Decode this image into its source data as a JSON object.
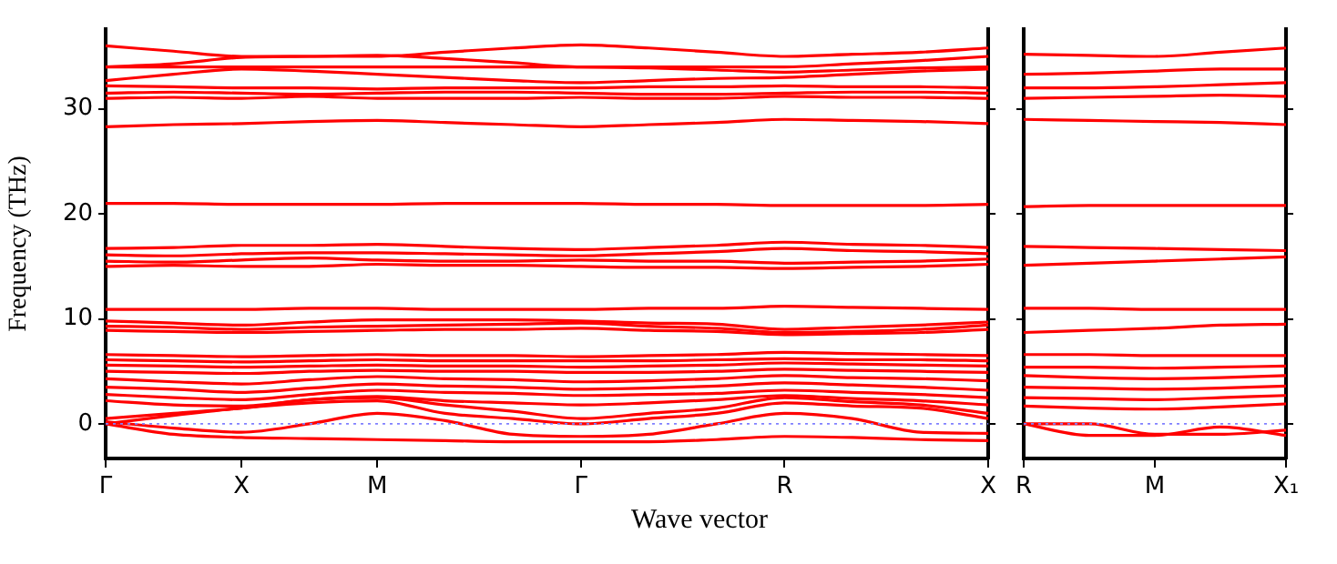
{
  "chart_data": [
    {
      "type": "line",
      "xlabel": "Wave vector",
      "ylabel": "Frequency (THz)",
      "categories": [
        "Γ",
        null,
        "X",
        null,
        "M",
        null,
        null,
        "Γ",
        null,
        null,
        "R",
        null,
        null,
        "X"
      ],
      "ylim": [
        -3.3,
        37.6
      ],
      "yticks": [
        0,
        10,
        20,
        30
      ],
      "ref_lines": [
        {
          "axis": "y",
          "value": 0,
          "color": "#8080ff",
          "line_style": "dotted"
        }
      ],
      "series": [
        {
          "color": "#ff0000",
          "values": [
            36.0,
            35.5,
            35.0,
            35.0,
            35.0,
            35.4,
            35.8,
            36.1,
            35.8,
            35.4,
            35.0,
            35.2,
            35.4,
            35.8
          ]
        },
        {
          "color": "#ff0000",
          "values": [
            34.0,
            34.3,
            34.9,
            35.0,
            35.1,
            34.8,
            34.4,
            34.0,
            34.0,
            34.0,
            34.0,
            34.3,
            34.6,
            35.0
          ]
        },
        {
          "color": "#ff0000",
          "values": [
            34.0,
            34.0,
            34.0,
            34.0,
            34.0,
            34.0,
            34.0,
            34.0,
            33.9,
            33.7,
            33.5,
            33.7,
            33.9,
            34.0
          ]
        },
        {
          "color": "#ff0000",
          "values": [
            32.7,
            33.3,
            33.8,
            33.6,
            33.3,
            33.0,
            32.7,
            32.5,
            32.7,
            32.9,
            33.0,
            33.3,
            33.6,
            33.8
          ]
        },
        {
          "color": "#ff0000",
          "values": [
            32.2,
            32.1,
            32.0,
            32.0,
            31.9,
            32.0,
            32.0,
            32.0,
            32.1,
            32.1,
            32.2,
            32.1,
            32.1,
            32.0
          ]
        },
        {
          "color": "#ff0000",
          "values": [
            31.5,
            31.6,
            31.5,
            31.4,
            31.5,
            31.6,
            31.6,
            31.5,
            31.4,
            31.4,
            31.5,
            31.6,
            31.6,
            31.5
          ]
        },
        {
          "color": "#ff0000",
          "values": [
            31.0,
            31.1,
            31.0,
            31.2,
            31.0,
            31.0,
            31.0,
            31.1,
            31.0,
            31.0,
            31.2,
            31.1,
            31.1,
            31.0
          ]
        },
        {
          "color": "#ff0000",
          "values": [
            28.3,
            28.5,
            28.6,
            28.8,
            28.9,
            28.7,
            28.5,
            28.3,
            28.5,
            28.7,
            29.0,
            28.9,
            28.8,
            28.6
          ]
        },
        {
          "color": "#ff0000",
          "values": [
            21.0,
            21.0,
            20.9,
            20.9,
            20.9,
            21.0,
            21.0,
            21.0,
            20.9,
            20.9,
            20.8,
            20.8,
            20.8,
            20.9
          ]
        },
        {
          "color": "#ff0000",
          "values": [
            16.7,
            16.8,
            17.0,
            17.0,
            17.1,
            16.9,
            16.7,
            16.6,
            16.8,
            17.0,
            17.3,
            17.1,
            17.0,
            16.8
          ]
        },
        {
          "color": "#ff0000",
          "values": [
            16.1,
            16.0,
            16.2,
            16.3,
            16.3,
            16.2,
            16.1,
            16.0,
            16.2,
            16.4,
            16.7,
            16.5,
            16.4,
            16.2
          ]
        },
        {
          "color": "#ff0000",
          "values": [
            15.5,
            15.4,
            15.6,
            15.8,
            15.6,
            15.5,
            15.5,
            15.6,
            15.5,
            15.5,
            15.3,
            15.4,
            15.5,
            15.7
          ]
        },
        {
          "color": "#ff0000",
          "values": [
            15.0,
            15.1,
            15.0,
            15.0,
            15.2,
            15.1,
            15.1,
            15.0,
            14.9,
            14.9,
            14.8,
            14.9,
            15.0,
            15.2
          ]
        },
        {
          "color": "#ff0000",
          "values": [
            10.9,
            10.9,
            10.9,
            11.0,
            11.0,
            10.9,
            10.9,
            10.9,
            11.0,
            11.0,
            11.2,
            11.1,
            11.0,
            10.9
          ]
        },
        {
          "color": "#ff0000",
          "values": [
            9.8,
            9.6,
            9.4,
            9.7,
            9.9,
            9.9,
            9.9,
            9.8,
            9.6,
            9.5,
            9.0,
            9.2,
            9.4,
            9.7
          ]
        },
        {
          "color": "#ff0000",
          "values": [
            9.3,
            9.2,
            9.0,
            9.2,
            9.3,
            9.4,
            9.5,
            9.6,
            9.3,
            9.1,
            8.7,
            8.8,
            9.0,
            9.4
          ]
        },
        {
          "color": "#ff0000",
          "values": [
            8.9,
            8.8,
            8.7,
            8.8,
            8.9,
            9.0,
            9.0,
            9.1,
            8.9,
            8.8,
            8.5,
            8.6,
            8.7,
            9.0
          ]
        },
        {
          "color": "#ff0000",
          "values": [
            6.6,
            6.5,
            6.4,
            6.5,
            6.6,
            6.5,
            6.5,
            6.4,
            6.5,
            6.6,
            6.8,
            6.7,
            6.6,
            6.5
          ]
        },
        {
          "color": "#ff0000",
          "values": [
            6.1,
            6.0,
            5.9,
            6.0,
            6.1,
            6.0,
            6.0,
            6.0,
            6.0,
            6.1,
            6.2,
            6.1,
            6.1,
            6.0
          ]
        },
        {
          "color": "#ff0000",
          "values": [
            5.6,
            5.5,
            5.4,
            5.5,
            5.6,
            5.5,
            5.5,
            5.4,
            5.5,
            5.6,
            5.8,
            5.7,
            5.6,
            5.5
          ]
        },
        {
          "color": "#ff0000",
          "values": [
            5.0,
            4.9,
            4.8,
            5.0,
            5.1,
            5.0,
            5.0,
            4.9,
            4.9,
            5.0,
            5.2,
            5.1,
            5.0,
            4.9
          ]
        },
        {
          "color": "#ff0000",
          "values": [
            4.3,
            4.0,
            3.8,
            4.2,
            4.5,
            4.3,
            4.2,
            4.0,
            4.1,
            4.3,
            4.6,
            4.4,
            4.3,
            4.1
          ]
        },
        {
          "color": "#ff0000",
          "values": [
            3.5,
            3.3,
            3.0,
            3.4,
            3.8,
            3.6,
            3.5,
            3.3,
            3.4,
            3.6,
            3.9,
            3.7,
            3.5,
            3.2
          ]
        },
        {
          "color": "#ff0000",
          "values": [
            2.8,
            2.5,
            2.3,
            2.8,
            3.2,
            3.0,
            2.9,
            2.7,
            2.8,
            2.9,
            3.2,
            3.0,
            2.8,
            2.5
          ]
        },
        {
          "color": "#ff0000",
          "values": [
            2.2,
            1.8,
            1.7,
            2.3,
            2.6,
            2.2,
            2.0,
            1.8,
            2.0,
            2.3,
            2.7,
            2.4,
            2.2,
            1.8
          ]
        },
        {
          "color": "#ff0000",
          "values": [
            0.5,
            1.0,
            1.5,
            2.3,
            2.5,
            1.8,
            1.2,
            0.5,
            1.0,
            1.5,
            2.5,
            2.1,
            1.8,
            1.0
          ]
        },
        {
          "color": "#ff0000",
          "values": [
            0.0,
            0.8,
            1.5,
            2.0,
            2.2,
            1.0,
            0.5,
            0.0,
            0.5,
            1.0,
            2.0,
            1.7,
            1.5,
            0.5
          ]
        },
        {
          "color": "#ff0000",
          "values": [
            0.2,
            -0.4,
            -0.8,
            0.0,
            1.0,
            0.3,
            -1.0,
            -1.2,
            -1.0,
            0.0,
            1.0,
            0.5,
            -0.8,
            -0.9
          ]
        },
        {
          "color": "#ff0000",
          "values": [
            0.0,
            -1.0,
            -1.3,
            -1.4,
            -1.5,
            -1.6,
            -1.7,
            -1.7,
            -1.7,
            -1.5,
            -1.2,
            -1.3,
            -1.5,
            -1.6
          ]
        }
      ]
    },
    {
      "type": "line",
      "tick_labels": "x",
      "categories": [
        "R",
        null,
        "M",
        null,
        "X₁"
      ],
      "ylim": [
        -3.3,
        37.6
      ],
      "yticks": [
        0,
        10,
        20,
        30
      ],
      "ref_lines": [
        {
          "axis": "y",
          "value": 0,
          "color": "#8080ff",
          "line_style": "dotted"
        }
      ],
      "series": [
        {
          "color": "#ff0000",
          "values": [
            35.2,
            35.1,
            35.0,
            35.4,
            35.8
          ]
        },
        {
          "color": "#ff0000",
          "values": [
            33.3,
            33.4,
            33.6,
            33.8,
            33.8
          ]
        },
        {
          "color": "#ff0000",
          "values": [
            32.0,
            32.0,
            32.1,
            32.3,
            32.5
          ]
        },
        {
          "color": "#ff0000",
          "values": [
            31.0,
            31.1,
            31.2,
            31.3,
            31.2
          ]
        },
        {
          "color": "#ff0000",
          "values": [
            29.0,
            28.9,
            28.8,
            28.7,
            28.5
          ]
        },
        {
          "color": "#ff0000",
          "values": [
            20.7,
            20.8,
            20.8,
            20.8,
            20.8
          ]
        },
        {
          "color": "#ff0000",
          "values": [
            16.9,
            16.8,
            16.7,
            16.6,
            16.5
          ]
        },
        {
          "color": "#ff0000",
          "values": [
            15.1,
            15.3,
            15.5,
            15.7,
            15.9
          ]
        },
        {
          "color": "#ff0000",
          "values": [
            11.0,
            11.0,
            10.9,
            10.9,
            10.9
          ]
        },
        {
          "color": "#ff0000",
          "values": [
            8.7,
            8.9,
            9.1,
            9.4,
            9.5
          ]
        },
        {
          "color": "#ff0000",
          "values": [
            6.6,
            6.6,
            6.5,
            6.5,
            6.5
          ]
        },
        {
          "color": "#ff0000",
          "values": [
            5.4,
            5.4,
            5.3,
            5.4,
            5.5
          ]
        },
        {
          "color": "#ff0000",
          "values": [
            4.6,
            4.4,
            4.3,
            4.4,
            4.6
          ]
        },
        {
          "color": "#ff0000",
          "values": [
            3.5,
            3.4,
            3.3,
            3.4,
            3.6
          ]
        },
        {
          "color": "#ff0000",
          "values": [
            2.5,
            2.4,
            2.3,
            2.5,
            2.7
          ]
        },
        {
          "color": "#ff0000",
          "values": [
            1.7,
            1.5,
            1.4,
            1.6,
            1.9
          ]
        },
        {
          "color": "#ff0000",
          "values": [
            0.0,
            0.0,
            -1.0,
            -1.0,
            -0.6
          ]
        },
        {
          "color": "#ff0000",
          "values": [
            0.0,
            -1.1,
            -1.1,
            -0.3,
            -1.1
          ]
        }
      ]
    }
  ]
}
